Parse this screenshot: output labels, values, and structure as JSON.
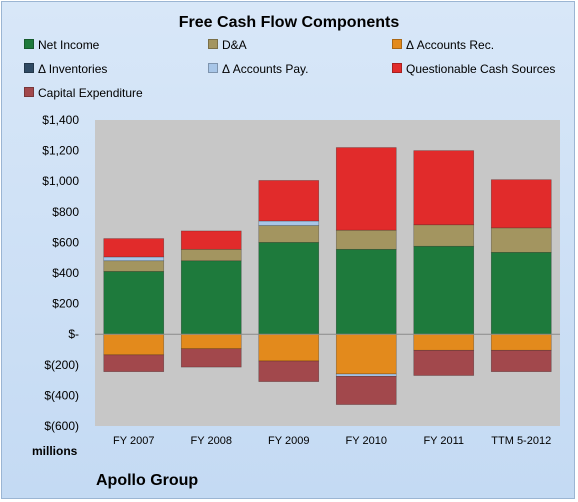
{
  "chart_data": {
    "type": "bar",
    "stacked": true,
    "title": "Free Cash Flow Components",
    "ylabel": "millions",
    "ylim": [
      -600,
      1400
    ],
    "yticks": [
      1400,
      1200,
      1000,
      800,
      600,
      400,
      200,
      0,
      -200,
      -400,
      -600
    ],
    "ytick_labels": [
      "$1,400",
      "$1,200",
      "$1,000",
      "$800",
      "$600",
      "$400",
      "$200",
      "$-",
      "$(200)",
      "$(400)",
      "$(600)"
    ],
    "categories": [
      "FY 2007",
      "FY 2008",
      "FY 2009",
      "FY 2010",
      "FY 2011",
      "TTM 5-2012"
    ],
    "legend_position": "top",
    "grid": false,
    "series": [
      {
        "name": "Net Income",
        "color": "#1e7a3c",
        "values": [
          410,
          480,
          600,
          555,
          575,
          535
        ]
      },
      {
        "name": "D&A",
        "color": "#a39560",
        "values": [
          70,
          75,
          110,
          125,
          140,
          160
        ]
      },
      {
        "name": "Δ Accounts Rec.",
        "color": "#e38a1c",
        "values": [
          -135,
          -95,
          -175,
          -260,
          -105,
          -105
        ]
      },
      {
        "name": "Δ Inventories",
        "color": "#2f4a63",
        "values": [
          0,
          0,
          0,
          0,
          0,
          0
        ]
      },
      {
        "name": "Δ Accounts Pay.",
        "color": "#a8c6e8",
        "values": [
          25,
          0,
          30,
          -15,
          0,
          0
        ]
      },
      {
        "name": "Questionable Cash Sources",
        "color": "#e12b2b",
        "values": [
          120,
          120,
          265,
          540,
          485,
          315
        ]
      },
      {
        "name": "Capital Expenditure",
        "color": "#a2484c",
        "values": [
          -110,
          -120,
          -135,
          -185,
          -165,
          -140
        ]
      }
    ]
  },
  "company": "Apollo Group"
}
